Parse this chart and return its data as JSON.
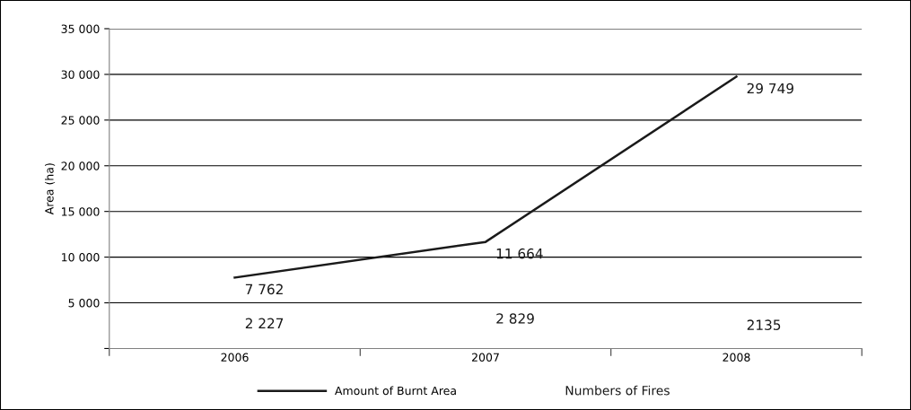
{
  "chart_data": {
    "type": "line",
    "ylabel": "Area (ha)",
    "categories": [
      "2006",
      "2007",
      "2008"
    ],
    "series": [
      {
        "name": "Amount of Burnt Area",
        "color": "#1a1a1a",
        "values": [
          7762,
          11664,
          29749
        ],
        "value_labels": [
          "7 762",
          "11 664",
          "29 749"
        ]
      }
    ],
    "annotations": [
      "2 227",
      "2 829",
      "2135",
      "Numbers of Fires"
    ],
    "ylim": [
      0,
      35000
    ],
    "yticks": [
      {
        "value": 0,
        "label": null
      },
      {
        "value": 5000,
        "label": "5 000"
      },
      {
        "value": 10000,
        "label": "10 000"
      },
      {
        "value": 15000,
        "label": "15 000"
      },
      {
        "value": 20000,
        "label": "20 000"
      },
      {
        "value": 25000,
        "label": "25 000"
      },
      {
        "value": 30000,
        "label": "30 000"
      },
      {
        "value": 35000,
        "label": "35 000"
      }
    ],
    "grid": "y",
    "legend": "bottom",
    "marker": "none",
    "line_style": "solid"
  }
}
